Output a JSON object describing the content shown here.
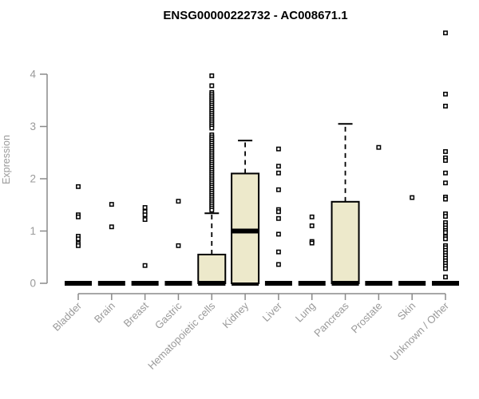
{
  "chart_data": {
    "type": "boxplot",
    "title": "ENSG00000222732 - AC008671.1",
    "ylabel": "Expression",
    "xlabel": "",
    "ylim": [
      0,
      4
    ],
    "y_ticks": [
      0,
      1,
      2,
      3,
      4
    ],
    "grid": false,
    "legend": "none",
    "categories": [
      "Bladder",
      "Brain",
      "Breast",
      "Gastric",
      "Hematopoietic cells",
      "Kidney",
      "Liver",
      "Lung",
      "Pancreas",
      "Prostate",
      "Skin",
      "Unknown / Other"
    ],
    "boxes": [
      {
        "q1": 0,
        "median": 0,
        "q3": 0,
        "whisker_low": 0,
        "whisker_high": 0,
        "outliers": [
          1.85,
          1.31,
          1.27,
          0.9,
          0.85,
          0.76,
          0.72
        ]
      },
      {
        "q1": 0,
        "median": 0,
        "q3": 0,
        "whisker_low": 0,
        "whisker_high": 0,
        "outliers": [
          1.51,
          1.08
        ]
      },
      {
        "q1": 0,
        "median": 0,
        "q3": 0,
        "whisker_low": 0,
        "whisker_high": 0,
        "outliers": [
          1.45,
          1.37,
          1.31,
          1.22,
          0.34
        ]
      },
      {
        "q1": 0,
        "median": 0,
        "q3": 0,
        "whisker_low": 0,
        "whisker_high": 0,
        "outliers": [
          1.57,
          0.72
        ]
      },
      {
        "q1": 0,
        "median": 0,
        "q3": 0.55,
        "whisker_low": 0,
        "whisker_high": 1.34,
        "outliers": [
          3.97,
          3.78,
          3.65,
          3.61,
          3.57,
          3.53,
          3.49,
          3.45,
          3.41,
          3.37,
          3.33,
          3.29,
          3.25,
          3.21,
          3.17,
          3.13,
          3.09,
          3.05,
          3.01,
          2.97,
          2.84,
          2.8,
          2.76,
          2.72,
          2.68,
          2.64,
          2.6,
          2.56,
          2.52,
          2.48,
          2.44,
          2.4,
          2.36,
          2.32,
          2.28,
          2.24,
          2.2,
          2.16,
          2.12,
          2.08,
          2.04,
          2.0,
          1.96,
          1.92,
          1.88,
          1.84,
          1.8,
          1.76,
          1.72,
          1.68,
          1.64,
          1.6,
          1.56,
          1.52,
          1.48,
          1.44,
          1.4
        ]
      },
      {
        "q1": 0,
        "median": 1.0,
        "q3": 2.1,
        "whisker_low": 0,
        "whisker_high": 2.73,
        "outliers": []
      },
      {
        "q1": 0,
        "median": 0,
        "q3": 0,
        "whisker_low": 0,
        "whisker_high": 0,
        "outliers": [
          2.57,
          2.24,
          2.11,
          1.79,
          1.41,
          1.37,
          1.24,
          0.94,
          0.6,
          0.36
        ]
      },
      {
        "q1": 0,
        "median": 0,
        "q3": 0,
        "whisker_low": 0,
        "whisker_high": 0,
        "outliers": [
          1.27,
          1.1,
          0.8,
          0.77
        ]
      },
      {
        "q1": 0,
        "median": 0,
        "q3": 1.56,
        "whisker_low": 0,
        "whisker_high": 3.05,
        "outliers": []
      },
      {
        "q1": 0,
        "median": 0,
        "q3": 0,
        "whisker_low": 0,
        "whisker_high": 0,
        "outliers": [
          2.6
        ]
      },
      {
        "q1": 0,
        "median": 0,
        "q3": 0,
        "whisker_low": 0,
        "whisker_high": 0,
        "outliers": [
          1.64
        ]
      },
      {
        "q1": 0,
        "median": 0,
        "q3": 0,
        "whisker_low": 0,
        "whisker_high": 0,
        "outliers": [
          4.79,
          3.62,
          3.39,
          2.52,
          2.4,
          2.35,
          2.11,
          1.92,
          1.65,
          1.61,
          1.33,
          1.28,
          1.16,
          1.11,
          1.06,
          1.01,
          0.97,
          0.89,
          0.85,
          0.72,
          0.68,
          0.63,
          0.58,
          0.53,
          0.48,
          0.43,
          0.38,
          0.33,
          0.28,
          0.12
        ]
      }
    ],
    "colors": {
      "box_fill": "#EDE9CB",
      "box_stroke": "#000000",
      "median": "#000000",
      "outlier_stroke": "#000000",
      "outlier_fill": "#ffffff",
      "axis": "#8a8a8a",
      "tick_text": "#9a9a9a",
      "title_text": "#000000",
      "background": "#ffffff"
    }
  }
}
